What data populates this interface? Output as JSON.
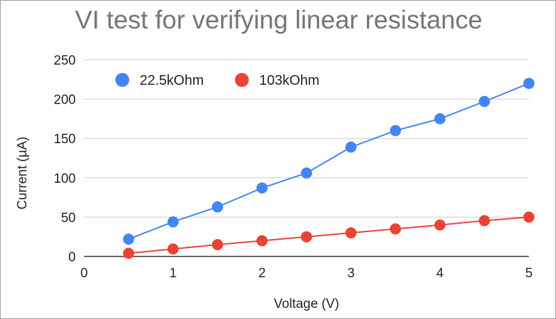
{
  "chart_data": {
    "type": "line",
    "title": "VI test for verifying linear resistance",
    "xlabel": "Voltage (V)",
    "ylabel": "Current (µA)",
    "xlim": [
      0,
      5
    ],
    "ylim": [
      0,
      250
    ],
    "xticks": [
      0,
      1,
      2,
      3,
      4,
      5
    ],
    "yticks": [
      0,
      50,
      100,
      150,
      200,
      250
    ],
    "grid": true,
    "legend_position": "top-left",
    "series": [
      {
        "name": "22.5kOhm",
        "color": "#4285F4",
        "x": [
          0.5,
          1,
          1.5,
          2,
          2.5,
          3,
          3.5,
          4,
          4.5,
          5
        ],
        "y": [
          22,
          44,
          63,
          87,
          106,
          139,
          160,
          175,
          197,
          220
        ]
      },
      {
        "name": "103kOhm",
        "color": "#EA4335",
        "x": [
          0.5,
          1,
          1.5,
          2,
          2.5,
          3,
          3.5,
          4,
          4.5,
          5
        ],
        "y": [
          4,
          9.5,
          15,
          20,
          25,
          30,
          35,
          40,
          45.5,
          50
        ]
      }
    ]
  }
}
